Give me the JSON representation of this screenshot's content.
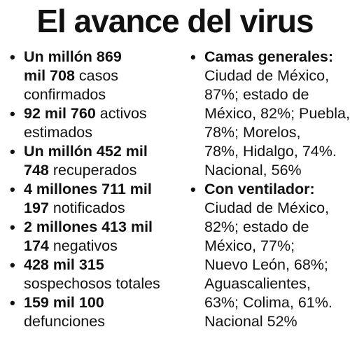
{
  "title": "El avance del virus",
  "left_items": [
    {
      "lines": [
        [
          {
            "b": "Un millón 869"
          }
        ],
        [
          {
            "b": "mil 708"
          },
          {
            "t": " casos"
          }
        ],
        [
          {
            "t": "confirmados"
          }
        ]
      ]
    },
    {
      "lines": [
        [
          {
            "b": "92 mil 760"
          },
          {
            "t": " activos"
          }
        ],
        [
          {
            "t": "estimados"
          }
        ]
      ]
    },
    {
      "lines": [
        [
          {
            "b": "Un millón 452 mil"
          }
        ],
        [
          {
            "b": "748"
          },
          {
            "t": " recuperados"
          }
        ]
      ]
    },
    {
      "lines": [
        [
          {
            "b": "4 millones 711 mil"
          }
        ],
        [
          {
            "b": "197"
          },
          {
            "t": " notificados"
          }
        ]
      ]
    },
    {
      "lines": [
        [
          {
            "b": "2 millones 413 mil"
          }
        ],
        [
          {
            "b": "174"
          },
          {
            "t": " negativos"
          }
        ]
      ]
    },
    {
      "lines": [
        [
          {
            "b": "428 mil 315"
          }
        ],
        [
          {
            "t": "sospechosos totales"
          }
        ]
      ]
    },
    {
      "lines": [
        [
          {
            "b": "159 mil 100"
          }
        ],
        [
          {
            "t": "defunciones"
          }
        ]
      ]
    }
  ],
  "right_items": [
    {
      "lines": [
        [
          {
            "b": "Camas generales:"
          }
        ],
        [
          {
            "t": "Ciudad de México,"
          }
        ],
        [
          {
            "t": "87%; estado de"
          }
        ],
        [
          {
            "t": "México, 82%; Puebla,"
          }
        ],
        [
          {
            "t": "78%; Morelos,"
          }
        ],
        [
          {
            "t": "78%, Hidalgo, 74%."
          }
        ],
        [
          {
            "t": "Nacional, 56%"
          }
        ]
      ]
    },
    {
      "lines": [
        [
          {
            "b": "Con ventilador:"
          }
        ],
        [
          {
            "t": "Ciudad de México,"
          }
        ],
        [
          {
            "t": "82%; estado de"
          }
        ],
        [
          {
            "t": "México, 77%;"
          }
        ],
        [
          {
            "t": "Nuevo León, 68%;"
          }
        ],
        [
          {
            "t": "Aguascalientes,"
          }
        ],
        [
          {
            "t": "63%; Colima, 61%."
          }
        ],
        [
          {
            "t": "Nacional 52%"
          }
        ]
      ]
    }
  ],
  "bullet_char": "•"
}
